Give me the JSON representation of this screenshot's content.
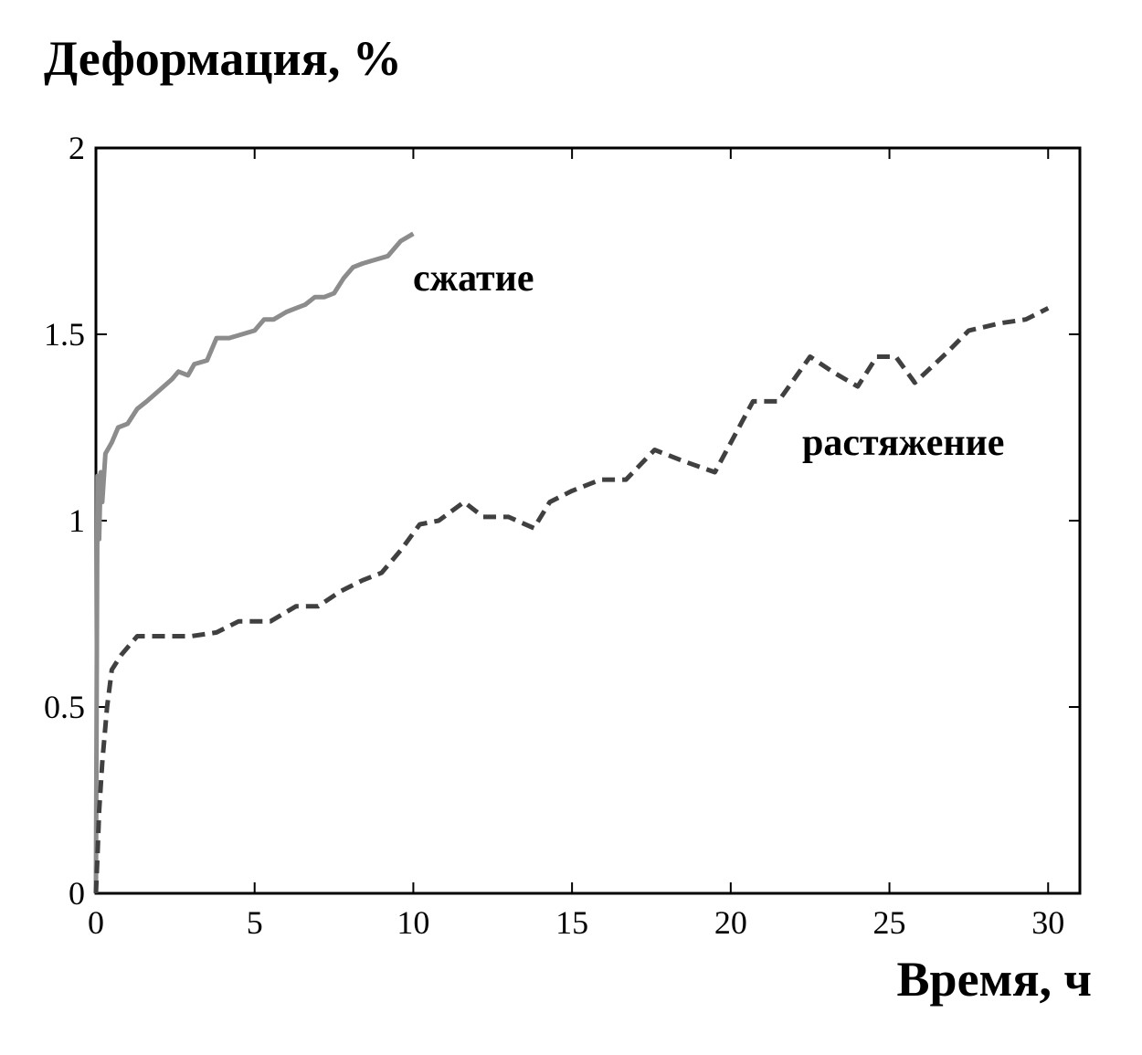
{
  "chart_data": {
    "type": "line",
    "title": "",
    "ylabel": "Деформация, %",
    "xlabel": "Время, ч",
    "xlim": [
      0,
      31
    ],
    "ylim": [
      0,
      2
    ],
    "xticks": [
      0,
      5,
      10,
      15,
      20,
      25,
      30
    ],
    "yticks": [
      0,
      0.5,
      1,
      1.5,
      2
    ],
    "xtick_labels": [
      "0",
      "5",
      "10",
      "15",
      "20",
      "25",
      "30"
    ],
    "ytick_labels": [
      "0",
      "0.5",
      "1",
      "1.5",
      "2"
    ],
    "grid": false,
    "series": [
      {
        "name": "сжатие",
        "style": "solid",
        "color": "#8c8c8c",
        "x": [
          0,
          0.05,
          0.1,
          0.15,
          0.2,
          0.3,
          0.5,
          0.7,
          1.0,
          1.3,
          1.6,
          2.0,
          2.4,
          2.6,
          2.9,
          3.1,
          3.5,
          3.8,
          4.2,
          4.6,
          5.0,
          5.3,
          5.6,
          6.0,
          6.3,
          6.6,
          6.9,
          7.2,
          7.5,
          7.8,
          8.1,
          8.4,
          8.8,
          9.2,
          9.6,
          10.0
        ],
        "y": [
          0,
          1.12,
          0.95,
          1.13,
          1.05,
          1.18,
          1.21,
          1.25,
          1.26,
          1.3,
          1.32,
          1.35,
          1.38,
          1.4,
          1.39,
          1.42,
          1.43,
          1.49,
          1.49,
          1.5,
          1.51,
          1.54,
          1.54,
          1.56,
          1.57,
          1.58,
          1.6,
          1.6,
          1.61,
          1.65,
          1.68,
          1.69,
          1.7,
          1.71,
          1.75,
          1.77
        ]
      },
      {
        "name": "растяжение",
        "style": "dashed",
        "color": "#404040",
        "x": [
          0,
          0.05,
          0.1,
          0.2,
          0.35,
          0.5,
          0.8,
          1.3,
          2.0,
          3.0,
          3.8,
          4.5,
          5.5,
          6.3,
          7.0,
          7.7,
          8.4,
          9.0,
          9.6,
          10.2,
          10.8,
          11.6,
          12.2,
          13.0,
          13.8,
          14.3,
          15.0,
          15.9,
          16.7,
          17.6,
          18.5,
          19.5,
          20.7,
          21.5,
          22.5,
          23.2,
          24.0,
          24.6,
          25.2,
          25.8,
          26.8,
          27.5,
          28.5,
          29.3,
          30.0
        ],
        "y": [
          0,
          0.1,
          0.22,
          0.35,
          0.5,
          0.6,
          0.64,
          0.69,
          0.69,
          0.69,
          0.7,
          0.73,
          0.73,
          0.77,
          0.77,
          0.81,
          0.84,
          0.86,
          0.92,
          0.99,
          1.0,
          1.05,
          1.01,
          1.01,
          0.98,
          1.05,
          1.08,
          1.11,
          1.11,
          1.19,
          1.16,
          1.13,
          1.32,
          1.32,
          1.44,
          1.4,
          1.36,
          1.44,
          1.44,
          1.37,
          1.45,
          1.51,
          1.53,
          1.54,
          1.57
        ]
      }
    ]
  }
}
